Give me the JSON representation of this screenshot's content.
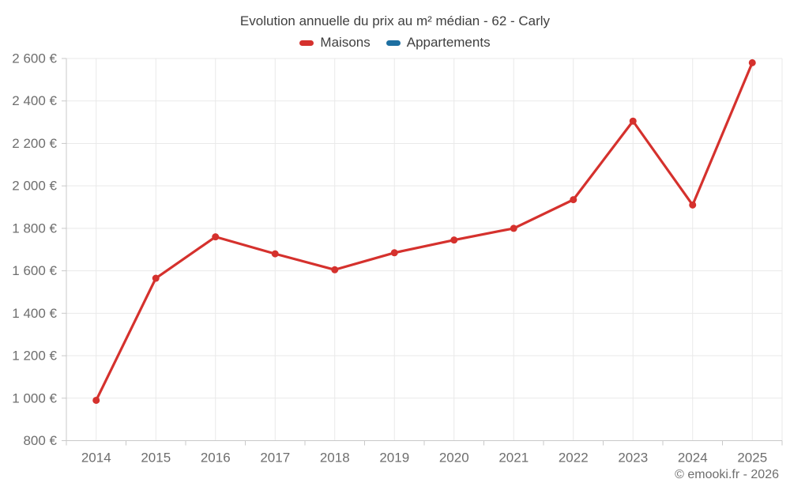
{
  "page": {
    "background": "#ffffff",
    "attribution": "© emooki.fr - 2026"
  },
  "colors": {
    "maisons": "#d5312d",
    "appartements": "#1d6fa1",
    "grid": "#e9e9e9",
    "axis": "#c9c9c9",
    "tick_label": "#6e6e6e",
    "title_text": "#3f3f3f"
  },
  "chart_data": {
    "type": "line",
    "title": "Evolution annuelle du prix au m² médian - 62 - Carly",
    "categories": [
      "2014",
      "2015",
      "2016",
      "2017",
      "2018",
      "2019",
      "2020",
      "2021",
      "2022",
      "2023",
      "2024",
      "2025"
    ],
    "series": [
      {
        "name": "Maisons",
        "color": "#d5312d",
        "values": [
          990,
          1565,
          1760,
          1680,
          1605,
          1685,
          1745,
          1800,
          1935,
          2305,
          1910,
          2580
        ]
      },
      {
        "name": "Appartements",
        "color": "#1d6fa1",
        "values": []
      }
    ],
    "xlabel": "",
    "ylabel": "",
    "ylim": [
      800,
      2600
    ],
    "ytick_step": 200,
    "yticks": [
      800,
      1000,
      1200,
      1400,
      1600,
      1800,
      2000,
      2200,
      2400,
      2600
    ],
    "yticklabels": [
      "800 €",
      "1 000 €",
      "1 200 €",
      "1 400 €",
      "1 600 €",
      "1 800 €",
      "2 000 €",
      "2 200 €",
      "2 400 €",
      "2 600 €"
    ],
    "grid": true,
    "legend_position": "top-center"
  }
}
